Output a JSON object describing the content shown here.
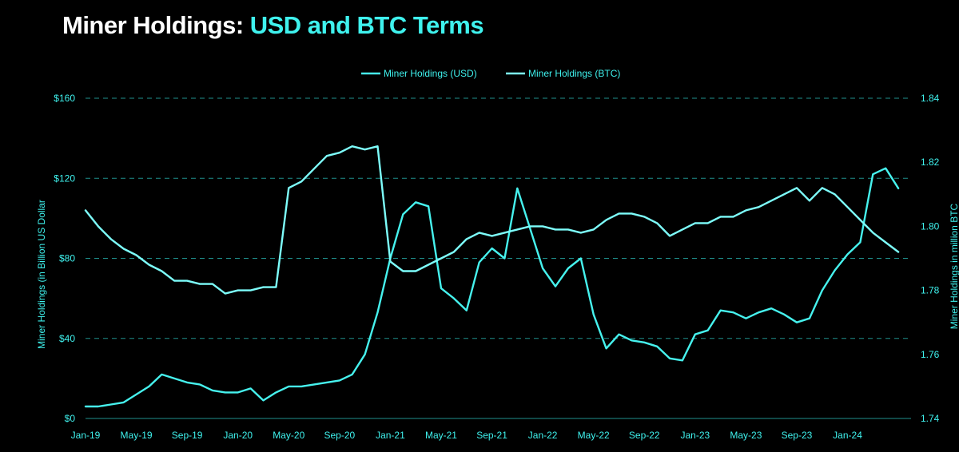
{
  "title": {
    "prefix": "Miner Holdings:",
    "accent": "USD and BTC Terms"
  },
  "colors": {
    "background": "#000000",
    "accent": "#3ff2ee",
    "series_usd": "#46f2ee",
    "series_btc": "#7dfdfb",
    "grid": "#1f8f8c",
    "axis_text": "#3ff2ee"
  },
  "chart_data": {
    "type": "line",
    "title": "Miner Holdings: USD and BTC Terms",
    "legend": {
      "placement": "top-center",
      "entries": [
        "Miner Holdings (USD)",
        "Miner Holdings (BTC)"
      ]
    },
    "x_ticks": [
      "Jan-19",
      "May-19",
      "Sep-19",
      "Jan-20",
      "May-20",
      "Sep-20",
      "Jan-21",
      "May-21",
      "Sep-21",
      "Jan-22",
      "May-22",
      "Sep-22",
      "Jan-23",
      "May-23",
      "Sep-23",
      "Jan-24"
    ],
    "x_range": [
      "Jan-19",
      "Jun-24"
    ],
    "y_left": {
      "label": "Miner Holdings (in Billion  US Dollar",
      "ticks": [
        "$0",
        "$40",
        "$80",
        "$120",
        "$160"
      ],
      "range": [
        0,
        160
      ]
    },
    "y_right": {
      "label": "Miner Holdings in million BTC",
      "ticks": [
        "1.74",
        "1.76",
        "1.78",
        "1.80",
        "1.82",
        "1.84"
      ],
      "range": [
        1.74,
        1.84
      ]
    },
    "grid": "horizontal dashed",
    "series": [
      {
        "name": "Miner Holdings (USD)",
        "axis": "left",
        "x": [
          "2019-01",
          "2019-02",
          "2019-03",
          "2019-04",
          "2019-05",
          "2019-06",
          "2019-07",
          "2019-08",
          "2019-09",
          "2019-10",
          "2019-11",
          "2019-12",
          "2020-01",
          "2020-02",
          "2020-03",
          "2020-04",
          "2020-05",
          "2020-06",
          "2020-07",
          "2020-08",
          "2020-09",
          "2020-10",
          "2020-11",
          "2020-12",
          "2021-01",
          "2021-02",
          "2021-03",
          "2021-04",
          "2021-05",
          "2021-06",
          "2021-07",
          "2021-08",
          "2021-09",
          "2021-10",
          "2021-11",
          "2021-12",
          "2022-01",
          "2022-02",
          "2022-03",
          "2022-04",
          "2022-05",
          "2022-06",
          "2022-07",
          "2022-08",
          "2022-09",
          "2022-10",
          "2022-11",
          "2022-12",
          "2023-01",
          "2023-02",
          "2023-03",
          "2023-04",
          "2023-05",
          "2023-06",
          "2023-07",
          "2023-08",
          "2023-09",
          "2023-10",
          "2023-11",
          "2023-12",
          "2024-01",
          "2024-02",
          "2024-03",
          "2024-04",
          "2024-05"
        ],
        "values": [
          6,
          6,
          7,
          8,
          12,
          16,
          22,
          20,
          18,
          17,
          14,
          13,
          13,
          15,
          9,
          13,
          16,
          16,
          17,
          18,
          19,
          22,
          32,
          53,
          80,
          102,
          108,
          106,
          65,
          60,
          54,
          78,
          85,
          80,
          115,
          95,
          75,
          66,
          75,
          80,
          52,
          35,
          42,
          39,
          38,
          36,
          30,
          29,
          42,
          44,
          54,
          53,
          50,
          53,
          55,
          52,
          48,
          50,
          64,
          74,
          82,
          88,
          122,
          125,
          115
        ]
      },
      {
        "name": "Miner Holdings (BTC)",
        "axis": "right",
        "x": [
          "2019-01",
          "2019-02",
          "2019-03",
          "2019-04",
          "2019-05",
          "2019-06",
          "2019-07",
          "2019-08",
          "2019-09",
          "2019-10",
          "2019-11",
          "2019-12",
          "2020-01",
          "2020-02",
          "2020-03",
          "2020-04",
          "2020-05",
          "2020-06",
          "2020-07",
          "2020-08",
          "2020-09",
          "2020-10",
          "2020-11",
          "2020-12",
          "2021-01",
          "2021-02",
          "2021-03",
          "2021-04",
          "2021-05",
          "2021-06",
          "2021-07",
          "2021-08",
          "2021-09",
          "2021-10",
          "2021-11",
          "2021-12",
          "2022-01",
          "2022-02",
          "2022-03",
          "2022-04",
          "2022-05",
          "2022-06",
          "2022-07",
          "2022-08",
          "2022-09",
          "2022-10",
          "2022-11",
          "2022-12",
          "2023-01",
          "2023-02",
          "2023-03",
          "2023-04",
          "2023-05",
          "2023-06",
          "2023-07",
          "2023-08",
          "2023-09",
          "2023-10",
          "2023-11",
          "2023-12",
          "2024-01",
          "2024-02",
          "2024-03",
          "2024-04",
          "2024-05"
        ],
        "values": [
          1.805,
          1.8,
          1.796,
          1.793,
          1.791,
          1.788,
          1.786,
          1.783,
          1.783,
          1.782,
          1.782,
          1.779,
          1.78,
          1.78,
          1.781,
          1.781,
          1.812,
          1.814,
          1.818,
          1.822,
          1.823,
          1.825,
          1.824,
          1.825,
          1.789,
          1.786,
          1.786,
          1.788,
          1.79,
          1.792,
          1.796,
          1.798,
          1.797,
          1.798,
          1.799,
          1.8,
          1.8,
          1.799,
          1.799,
          1.798,
          1.799,
          1.802,
          1.804,
          1.804,
          1.803,
          1.801,
          1.797,
          1.799,
          1.801,
          1.801,
          1.803,
          1.803,
          1.805,
          1.806,
          1.808,
          1.81,
          1.812,
          1.808,
          1.812,
          1.81,
          1.806,
          1.802,
          1.798,
          1.795,
          1.792
        ]
      }
    ]
  }
}
